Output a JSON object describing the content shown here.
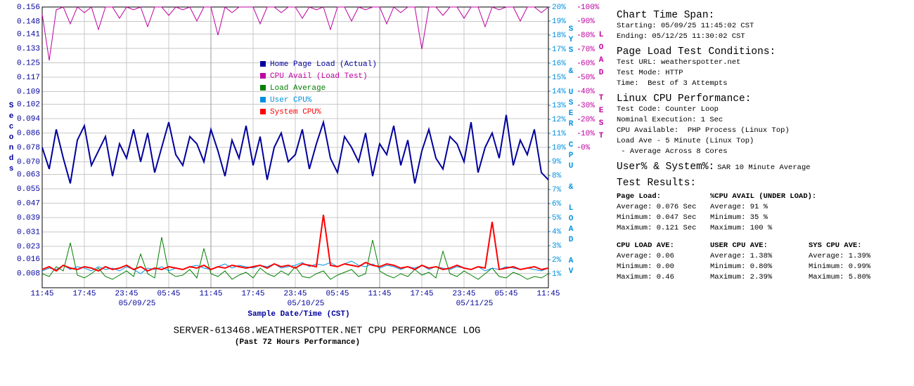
{
  "chart_data": {
    "type": "line",
    "title": "SERVER-613468.WEATHERSPOTTER.NET CPU PERFORMANCE LOG",
    "subtitle": "(Past 72 Hours Performance)",
    "x_label": "Sample Date/Time (CST)",
    "y_label": "Seconds",
    "y2_label": "SYS & USER CPU & LOAD AV",
    "y3_label": "LOAD TEST",
    "x": [
      0,
      1,
      2,
      3,
      4,
      5,
      6,
      7,
      8,
      9,
      10,
      11,
      12,
      13,
      14,
      15,
      16,
      17,
      18,
      19,
      20,
      21,
      22,
      23,
      24,
      25,
      26,
      27,
      28,
      29,
      30,
      31,
      32,
      33,
      34,
      35,
      36,
      37,
      38,
      39,
      40,
      41,
      42,
      43,
      44,
      45,
      46,
      47,
      48,
      49,
      50,
      51,
      52,
      53,
      54,
      55,
      56,
      57,
      58,
      59,
      60,
      61,
      62,
      63,
      64,
      65,
      66,
      67,
      68,
      69,
      70,
      71,
      72
    ],
    "xlim": [
      0,
      72
    ],
    "xticks": [
      {
        "value": 0,
        "label": "11:45"
      },
      {
        "value": 6,
        "label": "17:45"
      },
      {
        "value": 12,
        "label": "23:45"
      },
      {
        "value": 18,
        "label": "05:45"
      },
      {
        "value": 24,
        "label": "11:45"
      },
      {
        "value": 30,
        "label": "17:45"
      },
      {
        "value": 36,
        "label": "23:45"
      },
      {
        "value": 42,
        "label": "05:45"
      },
      {
        "value": 48,
        "label": "11:45"
      },
      {
        "value": 54,
        "label": "17:45"
      },
      {
        "value": 60,
        "label": "23:45"
      },
      {
        "value": 66,
        "label": "05:45"
      },
      {
        "value": 72,
        "label": "11:45"
      }
    ],
    "xdates": [
      {
        "value": 13.5,
        "label": "05/09/25"
      },
      {
        "value": 37.5,
        "label": "05/10/25"
      },
      {
        "value": 61.5,
        "label": "05/11/25"
      }
    ],
    "ylim": [
      0,
      0.156
    ],
    "yticks": [
      0.008,
      0.016,
      0.023,
      0.031,
      0.039,
      0.047,
      0.055,
      0.063,
      {
        "value": 0.07,
        "label": "0.070"
      },
      0.078,
      0.086,
      0.094,
      0.102,
      0.109,
      0.117,
      0.125,
      0.133,
      0.141,
      0.148,
      0.156
    ],
    "y2lim": [
      0,
      20
    ],
    "y2ticks": [
      {
        "value": 1,
        "label": "1%"
      },
      {
        "value": 2,
        "label": "2%"
      },
      {
        "value": 3,
        "label": "3%"
      },
      {
        "value": 4,
        "label": "4%"
      },
      {
        "value": 5,
        "label": "5%"
      },
      {
        "value": 6,
        "label": "6%"
      },
      {
        "value": 7,
        "label": "7%"
      },
      {
        "value": 8,
        "label": "8%"
      },
      {
        "value": 9,
        "label": "9%"
      },
      {
        "value": 10,
        "label": "10%"
      },
      {
        "value": 11,
        "label": "11%"
      },
      {
        "value": 12,
        "label": "12%"
      },
      {
        "value": 13,
        "label": "13%"
      },
      {
        "value": 14,
        "label": "14%"
      },
      {
        "value": 15,
        "label": "15%"
      },
      {
        "value": 16,
        "label": "16%"
      },
      {
        "value": 17,
        "label": "17%"
      },
      {
        "value": 18,
        "label": "18%"
      },
      {
        "value": 19,
        "label": "19%"
      },
      {
        "value": 20,
        "label": "20%"
      }
    ],
    "y3lim": [
      -100,
      100
    ],
    "y3ticks": [
      {
        "value": 0,
        "label": "0%"
      },
      {
        "value": 10,
        "label": "10%"
      },
      {
        "value": 20,
        "label": "20%"
      },
      {
        "value": 30,
        "label": "30%"
      },
      {
        "value": 40,
        "label": "40%"
      },
      {
        "value": 50,
        "label": "50%"
      },
      {
        "value": 60,
        "label": "60%"
      },
      {
        "value": 70,
        "label": "70%"
      },
      {
        "value": 80,
        "label": "80%"
      },
      {
        "value": 90,
        "label": "90%"
      },
      {
        "value": 100,
        "label": "100%"
      }
    ],
    "grid": true,
    "series": [
      {
        "name": "Home Page Load (Actual)",
        "color": "#00009c",
        "axis": "y",
        "values": [
          0.078,
          0.066,
          0.088,
          0.072,
          0.058,
          0.082,
          0.09,
          0.068,
          0.076,
          0.084,
          0.062,
          0.08,
          0.072,
          0.088,
          0.07,
          0.086,
          0.064,
          0.078,
          0.092,
          0.074,
          0.068,
          0.084,
          0.08,
          0.07,
          0.088,
          0.076,
          0.062,
          0.082,
          0.072,
          0.09,
          0.068,
          0.084,
          0.06,
          0.078,
          0.086,
          0.07,
          0.074,
          0.088,
          0.066,
          0.08,
          0.092,
          0.072,
          0.064,
          0.084,
          0.078,
          0.07,
          0.086,
          0.062,
          0.08,
          0.074,
          0.09,
          0.068,
          0.082,
          0.058,
          0.076,
          0.088,
          0.072,
          0.066,
          0.084,
          0.08,
          0.07,
          0.092,
          0.064,
          0.078,
          0.086,
          0.072,
          0.096,
          0.068,
          0.082,
          0.074,
          0.088,
          0.064,
          0.06
        ]
      },
      {
        "name": "CPU Avail (Load Test)",
        "color": "#c000a0",
        "axis": "y3",
        "values": [
          95,
          62,
          98,
          100,
          88,
          100,
          96,
          100,
          84,
          100,
          100,
          92,
          100,
          98,
          100,
          86,
          100,
          100,
          94,
          100,
          98,
          100,
          90,
          100,
          100,
          80,
          100,
          96,
          100,
          100,
          100,
          88,
          100,
          100,
          96,
          100,
          100,
          92,
          100,
          98,
          100,
          84,
          100,
          100,
          90,
          100,
          98,
          100,
          100,
          88,
          100,
          96,
          100,
          100,
          70,
          100,
          100,
          94,
          100,
          100,
          92,
          100,
          100,
          86,
          100,
          98,
          100,
          100,
          90,
          100,
          100,
          96,
          100
        ]
      },
      {
        "name": "Load Average",
        "color": "#008000",
        "axis": "y2",
        "values": [
          1.0,
          0.8,
          1.5,
          1.2,
          3.2,
          0.9,
          0.7,
          1.0,
          1.4,
          0.8,
          0.6,
          0.9,
          1.2,
          0.8,
          2.4,
          1.0,
          0.7,
          3.6,
          1.1,
          0.8,
          0.9,
          1.3,
          0.7,
          2.8,
          1.0,
          0.8,
          1.2,
          0.6,
          0.9,
          1.1,
          0.7,
          1.4,
          1.0,
          0.8,
          1.2,
          0.9,
          1.5,
          0.8,
          0.7,
          1.0,
          1.2,
          0.6,
          0.9,
          1.1,
          1.3,
          0.8,
          1.0,
          3.4,
          1.2,
          0.9,
          0.7,
          1.0,
          0.8,
          1.3,
          0.9,
          1.1,
          0.7,
          2.6,
          1.0,
          0.8,
          1.2,
          0.9,
          0.6,
          1.0,
          1.4,
          0.8,
          0.7,
          1.1,
          0.9,
          0.6,
          0.8,
          0.7,
          1.0
        ]
      },
      {
        "name": "User CPU%",
        "color": "#0090e0",
        "axis": "y2",
        "values": [
          1.2,
          1.4,
          1.3,
          1.6,
          1.3,
          1.5,
          1.4,
          1.2,
          1.5,
          1.3,
          1.4,
          1.2,
          1.5,
          1.3,
          1.0,
          1.4,
          1.3,
          1.5,
          1.2,
          1.4,
          1.3,
          1.5,
          1.6,
          1.4,
          1.3,
          1.5,
          1.7,
          1.4,
          1.6,
          1.5,
          1.4,
          1.6,
          1.5,
          1.7,
          1.4,
          1.5,
          1.6,
          1.8,
          1.5,
          1.7,
          1.6,
          1.8,
          1.5,
          1.7,
          1.9,
          1.6,
          1.5,
          1.7,
          1.4,
          1.6,
          1.5,
          1.3,
          1.5,
          1.4,
          1.6,
          1.3,
          1.5,
          1.4,
          1.3,
          1.5,
          1.4,
          1.3,
          1.5,
          1.2,
          1.4,
          1.3,
          1.5,
          1.4,
          1.3,
          1.4,
          1.3,
          1.2,
          1.4
        ]
      },
      {
        "name": "System CPU%",
        "color": "#ff0000",
        "axis": "y2",
        "values": [
          1.3,
          1.5,
          1.2,
          1.6,
          1.4,
          1.3,
          1.5,
          1.4,
          1.2,
          1.5,
          1.3,
          1.4,
          1.6,
          1.3,
          1.5,
          1.2,
          1.4,
          1.3,
          1.5,
          1.4,
          1.3,
          1.5,
          1.4,
          1.6,
          1.3,
          1.5,
          1.4,
          1.6,
          1.5,
          1.4,
          1.5,
          1.6,
          1.4,
          1.7,
          1.5,
          1.6,
          1.4,
          1.7,
          1.6,
          1.5,
          5.2,
          1.6,
          1.5,
          1.7,
          1.6,
          1.5,
          1.8,
          1.6,
          1.5,
          1.7,
          1.6,
          1.4,
          1.5,
          1.3,
          1.6,
          1.4,
          1.5,
          1.3,
          1.4,
          1.6,
          1.4,
          1.3,
          1.5,
          1.4,
          4.7,
          1.3,
          1.4,
          1.5,
          1.3,
          1.4,
          1.5,
          1.3,
          1.4
        ]
      }
    ]
  },
  "panel": {
    "span": {
      "title": "Chart Time Span:",
      "lines": [
        "Starting: 05/09/25 11:45:02 CST",
        "Ending: 05/12/25 11:30:02 CST"
      ]
    },
    "conditions": {
      "title": "Page Load Test Conditions:",
      "lines": [
        "Test URL: weatherspotter.net",
        "Test Mode: HTTP",
        "Time:  Best of 3 Attempts"
      ]
    },
    "linux": {
      "title": "Linux CPU Performance:",
      "lines": [
        "Test Code: Counter Loop",
        "Nominal Execution: 1 Sec",
        "CPU Available:  PHP Process (Linux Top)",
        "Load Ave - 5 Minute (Linux Top)",
        " - Average Across 8 Cores"
      ]
    },
    "sar": {
      "title": "User% & System%:",
      "note": "SAR 10 Minute Average"
    },
    "results": {
      "title": "Test Results:",
      "rows": [
        [
          {
            "head": "Page Load:",
            "lines": [
              "Average: 0.076 Sec",
              "Minimum: 0.047 Sec",
              "Maximum: 0.121 Sec"
            ]
          },
          {
            "head": "%CPU AVAIL (UNDER LOAD):",
            "lines": [
              "Average: 91 %",
              "Minimum: 35 %",
              "Maximum: 100 %"
            ]
          }
        ],
        [
          {
            "head": "CPU LOAD AVE:",
            "lines": [
              "Average: 0.06",
              "Minimum: 0.00",
              "Maximum: 0.46"
            ]
          },
          {
            "head": "USER CPU AVE:",
            "lines": [
              "Average: 1.38%",
              "Minimum: 0.80%",
              "Maximum: 2.39%"
            ]
          },
          {
            "head": "SYS CPU AVE:",
            "lines": [
              "Average: 1.39%",
              "Minimum: 0.99%",
              "Maximum: 5.80%"
            ]
          }
        ]
      ]
    }
  }
}
